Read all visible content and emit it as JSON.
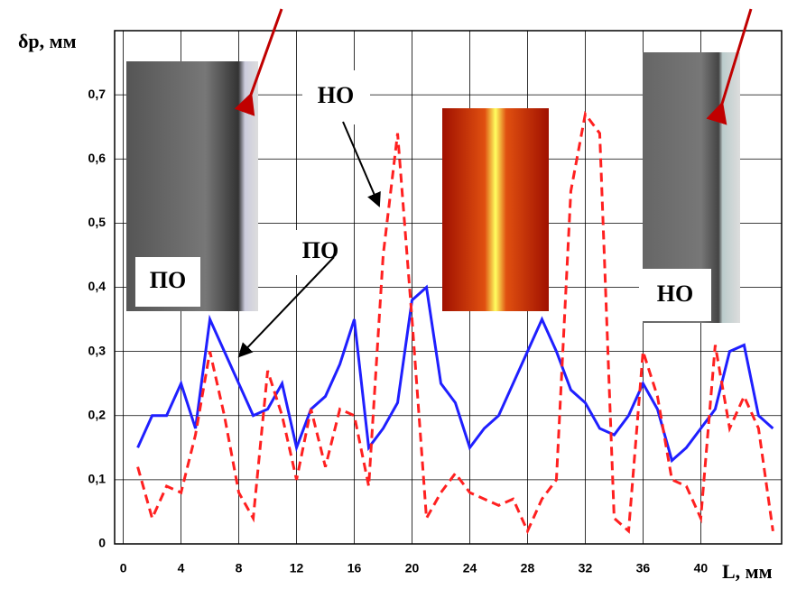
{
  "chart_data": {
    "type": "line",
    "y_label": "δp, мм",
    "x_label": "L, мм",
    "annotations": [
      "НО",
      "ПО",
      "ПО",
      "НО"
    ],
    "x": [
      1,
      2,
      3,
      4,
      5,
      6,
      7,
      8,
      9,
      10,
      11,
      12,
      13,
      14,
      15,
      16,
      17,
      18,
      19,
      20,
      21,
      22,
      23,
      24,
      25,
      26,
      27,
      28,
      29,
      30,
      31,
      32,
      33,
      34,
      35,
      36,
      37,
      38,
      39,
      40,
      41,
      42,
      43,
      44,
      45
    ],
    "series": [
      {
        "color": "#1f1fff",
        "dash": false,
        "values": [
          0.15,
          0.2,
          0.2,
          0.25,
          0.18,
          0.35,
          0.3,
          0.25,
          0.2,
          0.21,
          0.25,
          0.15,
          0.21,
          0.23,
          0.28,
          0.35,
          0.15,
          0.18,
          0.22,
          0.38,
          0.4,
          0.25,
          0.22,
          0.15,
          0.18,
          0.2,
          0.25,
          0.3,
          0.35,
          0.3,
          0.24,
          0.22,
          0.18,
          0.17,
          0.2,
          0.25,
          0.21,
          0.13,
          0.15,
          0.18,
          0.21,
          0.3,
          0.31,
          0.2,
          0.18
        ]
      },
      {
        "color": "#ff2020",
        "dash": true,
        "values": [
          0.12,
          0.04,
          0.09,
          0.08,
          0.17,
          0.3,
          0.2,
          0.08,
          0.04,
          0.27,
          0.2,
          0.1,
          0.21,
          0.12,
          0.21,
          0.2,
          0.09,
          0.45,
          0.64,
          0.35,
          0.04,
          0.08,
          0.11,
          0.08,
          0.07,
          0.06,
          0.07,
          0.02,
          0.07,
          0.1,
          0.55,
          0.67,
          0.64,
          0.04,
          0.02,
          0.3,
          0.23,
          0.1,
          0.09,
          0.04,
          0.31,
          0.18,
          0.23,
          0.18,
          0.02
        ]
      }
    ],
    "xlim": [
      -0.6,
      45.6
    ],
    "xticks": [
      0,
      4,
      8,
      12,
      16,
      20,
      24,
      28,
      32,
      36,
      40
    ],
    "ylim": [
      0,
      0.8
    ],
    "yticks": [
      0,
      {
        "value": 0.1,
        "label": "0,1"
      },
      {
        "value": 0.2,
        "label": "0,2"
      },
      {
        "value": 0.3,
        "label": "0,3"
      },
      {
        "value": 0.4,
        "label": "0,4"
      },
      {
        "value": 0.5,
        "label": "0,5"
      },
      {
        "value": 0.6,
        "label": "0,6"
      },
      {
        "value": 0.7,
        "label": "0,7"
      }
    ],
    "grid": true
  }
}
